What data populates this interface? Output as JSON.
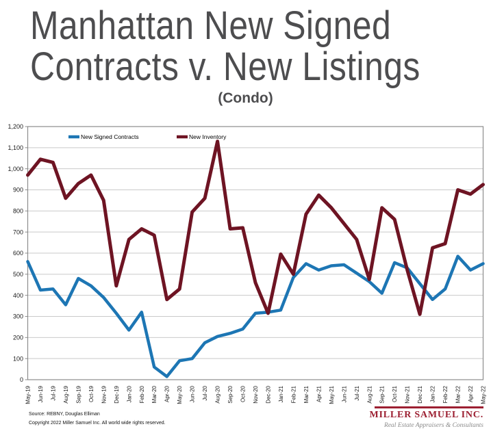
{
  "title": {
    "line1": "Manhattan New Signed",
    "line2": "Contracts v. New Listings",
    "subtitle": "(Condo)"
  },
  "footer": {
    "source": "Source: REBNY, Douglas Elliman",
    "copyright": "Copyright 2022 Miller Samuel Inc.  All world wide rights reserved.",
    "logo_name": "MILLER SAMUEL INC.",
    "logo_tagline": "Real Estate Appraisers & Consultants"
  },
  "colors": {
    "contracts": "#1d76b4",
    "inventory": "#6e1423",
    "logo_red": "#9c1f31",
    "grid": "#c9c9c9",
    "axis": "#8c8c8c",
    "tick_text": "#1a1a1a",
    "title_text": "#4d4d4f"
  },
  "chart_data": {
    "type": "line",
    "title": "Manhattan New Signed Contracts v. New Listings (Condo)",
    "xlabel": "",
    "ylabel": "",
    "ylim": [
      0,
      1200
    ],
    "ytick_step": 100,
    "grid": true,
    "legend_position": "top-inside",
    "categories": [
      "May-19",
      "Jun-19",
      "Jul-19",
      "Aug-19",
      "Sep-19",
      "Oct-19",
      "Nov-19",
      "Dec-19",
      "Jan-20",
      "Feb-20",
      "Mar-20",
      "Apr-20",
      "May-20",
      "Jun-20",
      "Jul-20",
      "Aug-20",
      "Sep-20",
      "Oct-20",
      "Nov-20",
      "Dec-20",
      "Jan-21",
      "Feb-21",
      "Mar-21",
      "Apr-21",
      "May-21",
      "Jun-21",
      "Jul-21",
      "Aug-21",
      "Sep-21",
      "Oct-21",
      "Nov-21",
      "Dec-21",
      "Jan-22",
      "Feb-22",
      "Mar-22",
      "Apr-22",
      "May-22"
    ],
    "series": [
      {
        "name": "New Signed Contracts",
        "color_key": "contracts",
        "width": 4.5,
        "values": [
          560,
          425,
          430,
          355,
          480,
          445,
          390,
          315,
          235,
          320,
          60,
          15,
          90,
          100,
          175,
          205,
          220,
          240,
          315,
          320,
          330,
          485,
          550,
          520,
          540,
          545,
          505,
          465,
          410,
          555,
          530,
          455,
          380,
          430,
          585,
          520,
          550
        ]
      },
      {
        "name": "New Inventory",
        "color_key": "inventory",
        "width": 5,
        "values": [
          970,
          1045,
          1030,
          860,
          930,
          970,
          850,
          445,
          665,
          715,
          685,
          380,
          430,
          795,
          860,
          1130,
          715,
          720,
          460,
          315,
          595,
          500,
          785,
          875,
          815,
          740,
          665,
          475,
          815,
          760,
          520,
          310,
          625,
          645,
          900,
          880,
          925
        ]
      }
    ]
  }
}
